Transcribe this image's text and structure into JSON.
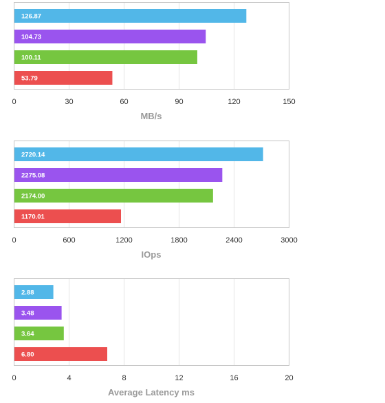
{
  "colors": [
    "#52b7e8",
    "#9a54ee",
    "#76c640",
    "#ec4f4f"
  ],
  "chart_data": [
    {
      "type": "bar",
      "orientation": "horizontal",
      "values": [
        126.87,
        104.73,
        100.11,
        53.79
      ],
      "value_labels": [
        "126.87",
        "104.73",
        "100.11",
        "53.79"
      ],
      "xlabel": "MB/s",
      "xlim": [
        0,
        150
      ],
      "xticks": [
        "0",
        "30",
        "60",
        "90",
        "120",
        "150"
      ],
      "grid": true
    },
    {
      "type": "bar",
      "orientation": "horizontal",
      "values": [
        2720.14,
        2275.08,
        2174.0,
        1170.01
      ],
      "value_labels": [
        "2720.14",
        "2275.08",
        "2174.00",
        "1170.01"
      ],
      "xlabel": "IOps",
      "xlim": [
        0,
        3000
      ],
      "xticks": [
        "0",
        "600",
        "1200",
        "1800",
        "2400",
        "3000"
      ],
      "grid": true
    },
    {
      "type": "bar",
      "orientation": "horizontal",
      "values": [
        2.88,
        3.48,
        3.64,
        6.8
      ],
      "value_labels": [
        "2.88",
        "3.48",
        "3.64",
        "6.80"
      ],
      "xlabel": "Average Latency ms",
      "xlim": [
        0,
        20
      ],
      "xticks": [
        "0",
        "4",
        "8",
        "12",
        "16",
        "20"
      ],
      "grid": true
    }
  ]
}
